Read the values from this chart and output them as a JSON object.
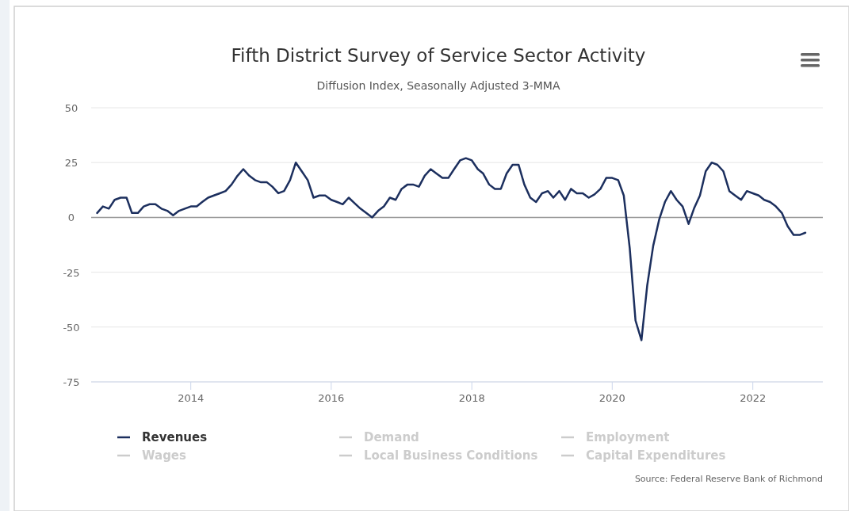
{
  "chart_data": {
    "type": "line",
    "title": "Fifth District Survey of Service Sector Activity",
    "subtitle": "Diffusion Index, Seasonally Adjusted 3-MMA",
    "annotations": [
      "Source: Federal Reserve Bank of Richmond"
    ],
    "x": [
      "2012-09",
      "2012-10",
      "2012-11",
      "2012-12",
      "2013-01",
      "2013-02",
      "2013-03",
      "2013-04",
      "2013-05",
      "2013-06",
      "2013-07",
      "2013-08",
      "2013-09",
      "2013-10",
      "2013-11",
      "2013-12",
      "2014-01",
      "2014-02",
      "2014-03",
      "2014-04",
      "2014-05",
      "2014-06",
      "2014-07",
      "2014-08",
      "2014-09",
      "2014-10",
      "2014-11",
      "2014-12",
      "2015-01",
      "2015-02",
      "2015-03",
      "2015-04",
      "2015-05",
      "2015-06",
      "2015-07",
      "2015-08",
      "2015-09",
      "2015-10",
      "2015-11",
      "2015-12",
      "2016-01",
      "2016-02",
      "2016-03",
      "2016-04",
      "2016-05",
      "2016-06",
      "2016-07",
      "2016-08",
      "2016-09",
      "2016-10",
      "2016-11",
      "2016-12",
      "2017-01",
      "2017-02",
      "2017-03",
      "2017-04",
      "2017-05",
      "2017-06",
      "2017-07",
      "2017-08",
      "2017-09",
      "2017-10",
      "2017-11",
      "2017-12",
      "2018-01",
      "2018-02",
      "2018-03",
      "2018-04",
      "2018-05",
      "2018-06",
      "2018-07",
      "2018-08",
      "2018-09",
      "2018-10",
      "2018-11",
      "2018-12",
      "2019-01",
      "2019-02",
      "2019-03",
      "2019-04",
      "2019-05",
      "2019-06",
      "2019-07",
      "2019-08",
      "2019-09",
      "2019-10",
      "2019-11",
      "2019-12",
      "2020-01",
      "2020-02",
      "2020-03",
      "2020-04",
      "2020-05",
      "2020-06",
      "2020-07",
      "2020-08",
      "2020-09",
      "2020-10",
      "2020-11",
      "2020-12",
      "2021-01",
      "2021-02",
      "2021-03",
      "2021-04",
      "2021-05",
      "2021-06",
      "2021-07",
      "2021-08",
      "2021-09",
      "2021-10",
      "2021-11",
      "2021-12",
      "2022-01",
      "2022-02",
      "2022-03",
      "2022-04",
      "2022-05",
      "2022-06",
      "2022-07",
      "2022-08",
      "2022-09",
      "2022-10"
    ],
    "series": [
      {
        "name": "Revenues",
        "color": "#1c2f5e",
        "values": [
          2,
          5,
          4,
          8,
          9,
          9,
          2,
          2,
          5,
          6,
          6,
          4,
          3,
          1,
          3,
          4,
          5,
          5,
          7,
          9,
          10,
          11,
          12,
          15,
          19,
          22,
          19,
          17,
          16,
          16,
          14,
          11,
          12,
          17,
          25,
          21,
          17,
          9,
          10,
          10,
          8,
          7,
          6,
          9,
          6.5,
          4,
          2,
          0,
          3,
          5,
          9,
          8,
          13,
          15,
          15,
          14,
          19,
          22,
          20,
          18,
          18,
          22,
          26,
          27,
          26,
          22,
          20,
          15,
          13,
          13,
          20,
          24,
          24,
          15,
          9,
          7,
          11,
          12,
          9,
          12,
          8,
          13,
          11,
          11,
          9,
          10.5,
          13,
          18,
          18,
          17,
          10,
          -14,
          -47,
          -56,
          -31,
          -13,
          -1,
          7,
          12,
          8,
          5,
          -3,
          4,
          10,
          21,
          25,
          24,
          21,
          12,
          10,
          8,
          12,
          11,
          10,
          8,
          7,
          5,
          2,
          -4,
          -8,
          -8,
          -7
        ]
      },
      {
        "name": "Demand",
        "color": "#cccccc",
        "values": [
          null,
          null,
          null,
          null,
          null,
          null,
          null,
          null,
          null,
          null,
          null,
          null,
          null,
          null,
          null,
          null,
          null,
          null,
          null,
          null,
          null,
          null,
          null,
          null,
          null,
          null,
          null,
          null,
          null,
          null,
          null,
          null,
          null,
          null,
          null,
          null,
          null,
          null,
          null,
          null,
          null,
          null,
          null,
          null,
          null,
          null,
          null,
          null,
          null,
          null,
          null,
          null,
          null,
          null,
          null,
          null,
          null,
          null,
          null,
          null,
          null,
          null,
          null,
          null,
          null,
          null,
          null,
          null,
          null,
          null,
          null,
          null,
          null,
          null,
          null,
          null,
          null,
          null,
          null,
          null,
          null,
          null,
          null,
          null,
          null,
          null,
          null,
          null,
          null,
          null,
          null,
          null,
          null,
          null,
          null,
          null,
          null,
          null,
          null,
          null,
          null,
          null,
          null,
          null,
          null,
          null,
          null,
          null,
          null,
          null,
          null,
          null,
          null,
          null,
          null,
          null,
          null,
          null,
          null,
          null,
          null,
          null
        ]
      },
      {
        "name": "Employment",
        "color": "#cccccc",
        "values": [
          null,
          null,
          null,
          null,
          null,
          null,
          null,
          null,
          null,
          null,
          null,
          null,
          null,
          null,
          null,
          null,
          null,
          null,
          null,
          null,
          null,
          null,
          null,
          null,
          null,
          null,
          null,
          null,
          null,
          null,
          null,
          null,
          null,
          null,
          null,
          null,
          null,
          null,
          null,
          null,
          null,
          null,
          null,
          null,
          null,
          null,
          null,
          null,
          null,
          null,
          null,
          null,
          null,
          null,
          null,
          null,
          null,
          null,
          null,
          null,
          null,
          null,
          null,
          null,
          null,
          null,
          null,
          null,
          null,
          null,
          null,
          null,
          null,
          null,
          null,
          null,
          null,
          null,
          null,
          null,
          null,
          null,
          null,
          null,
          null,
          null,
          null,
          null,
          null,
          null,
          null,
          null,
          null,
          null,
          null,
          null,
          null,
          null,
          null,
          null,
          null,
          null,
          null,
          null,
          null,
          null,
          null,
          null,
          null,
          null,
          null,
          null,
          null,
          null,
          null,
          null,
          null,
          null,
          null,
          null,
          null,
          null
        ]
      },
      {
        "name": "Wages",
        "color": "#cccccc",
        "values": [
          null,
          null,
          null,
          null,
          null,
          null,
          null,
          null,
          null,
          null,
          null,
          null,
          null,
          null,
          null,
          null,
          null,
          null,
          null,
          null,
          null,
          null,
          null,
          null,
          null,
          null,
          null,
          null,
          null,
          null,
          null,
          null,
          null,
          null,
          null,
          null,
          null,
          null,
          null,
          null,
          null,
          null,
          null,
          null,
          null,
          null,
          null,
          null,
          null,
          null,
          null,
          null,
          null,
          null,
          null,
          null,
          null,
          null,
          null,
          null,
          null,
          null,
          null,
          null,
          null,
          null,
          null,
          null,
          null,
          null,
          null,
          null,
          null,
          null,
          null,
          null,
          null,
          null,
          null,
          null,
          null,
          null,
          null,
          null,
          null,
          null,
          null,
          null,
          null,
          null,
          null,
          null,
          null,
          null,
          null,
          null,
          null,
          null,
          null,
          null,
          null,
          null,
          null,
          null,
          null,
          null,
          null,
          null,
          null,
          null,
          null,
          null,
          null,
          null,
          null,
          null,
          null,
          null,
          null,
          null,
          null,
          null
        ]
      },
      {
        "name": "Local Business Conditions",
        "color": "#cccccc",
        "values": [
          null,
          null,
          null,
          null,
          null,
          null,
          null,
          null,
          null,
          null,
          null,
          null,
          null,
          null,
          null,
          null,
          null,
          null,
          null,
          null,
          null,
          null,
          null,
          null,
          null,
          null,
          null,
          null,
          null,
          null,
          null,
          null,
          null,
          null,
          null,
          null,
          null,
          null,
          null,
          null,
          null,
          null,
          null,
          null,
          null,
          null,
          null,
          null,
          null,
          null,
          null,
          null,
          null,
          null,
          null,
          null,
          null,
          null,
          null,
          null,
          null,
          null,
          null,
          null,
          null,
          null,
          null,
          null,
          null,
          null,
          null,
          null,
          null,
          null,
          null,
          null,
          null,
          null,
          null,
          null,
          null,
          null,
          null,
          null,
          null,
          null,
          null,
          null,
          null,
          null,
          null,
          null,
          null,
          null,
          null,
          null,
          null,
          null,
          null,
          null,
          null,
          null,
          null,
          null,
          null,
          null,
          null,
          null,
          null,
          null,
          null,
          null,
          null,
          null,
          null,
          null,
          null,
          null,
          null,
          null,
          null,
          null
        ]
      },
      {
        "name": "Capital Expenditures",
        "color": "#cccccc",
        "values": [
          null,
          null,
          null,
          null,
          null,
          null,
          null,
          null,
          null,
          null,
          null,
          null,
          null,
          null,
          null,
          null,
          null,
          null,
          null,
          null,
          null,
          null,
          null,
          null,
          null,
          null,
          null,
          null,
          null,
          null,
          null,
          null,
          null,
          null,
          null,
          null,
          null,
          null,
          null,
          null,
          null,
          null,
          null,
          null,
          null,
          null,
          null,
          null,
          null,
          null,
          null,
          null,
          null,
          null,
          null,
          null,
          null,
          null,
          null,
          null,
          null,
          null,
          null,
          null,
          null,
          null,
          null,
          null,
          null,
          null,
          null,
          null,
          null,
          null,
          null,
          null,
          null,
          null,
          null,
          null,
          null,
          null,
          null,
          null,
          null,
          null,
          null,
          null,
          null,
          null,
          null,
          null,
          null,
          null,
          null,
          null,
          null,
          null,
          null,
          null,
          null,
          null,
          null,
          null,
          null,
          null,
          null,
          null,
          null,
          null,
          null,
          null,
          null,
          null,
          null,
          null,
          null,
          null,
          null,
          null,
          null,
          null
        ]
      }
    ],
    "xlim": [
      "2012-08",
      "2022-12-31"
    ],
    "xticks": [
      {
        "value": "2014",
        "label": "2014"
      },
      {
        "value": "2016",
        "label": "2016"
      },
      {
        "value": "2018",
        "label": "2018"
      },
      {
        "value": "2020",
        "label": "2020"
      },
      {
        "value": "2022",
        "label": "2022"
      }
    ],
    "ylim": [
      -75,
      50
    ],
    "yticks": [
      -75,
      -50,
      -25,
      0,
      25,
      50
    ],
    "grid": "y",
    "legend": "bottom",
    "ref_lines": [
      {
        "axis": "y",
        "value": 0,
        "color": "#999999"
      }
    ]
  }
}
